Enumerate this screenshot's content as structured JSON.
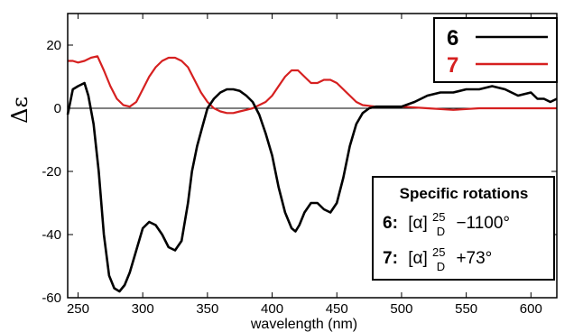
{
  "chart_data": {
    "type": "line",
    "xlabel": "wavelength (nm)",
    "ylabel": "Δε",
    "xlim": [
      242,
      620
    ],
    "ylim": [
      -60,
      30
    ],
    "xticks": [
      250,
      300,
      350,
      400,
      450,
      500,
      550,
      600
    ],
    "yticks": [
      -60,
      -40,
      -20,
      0,
      20
    ],
    "grid": false,
    "legend_position": "top-right",
    "series": [
      {
        "name": "6",
        "color": "#000000",
        "x": [
          242,
          246,
          250,
          255,
          258,
          262,
          266,
          270,
          274,
          278,
          282,
          286,
          290,
          295,
          300,
          305,
          310,
          315,
          320,
          325,
          330,
          335,
          338,
          342,
          346,
          350,
          355,
          360,
          365,
          370,
          375,
          380,
          385,
          390,
          395,
          400,
          405,
          410,
          415,
          418,
          421,
          425,
          430,
          435,
          440,
          445,
          450,
          455,
          460,
          465,
          470,
          475,
          480,
          490,
          500,
          510,
          520,
          530,
          540,
          550,
          560,
          570,
          580,
          590,
          600,
          605,
          610,
          615,
          620
        ],
        "y": [
          -2,
          6,
          7,
          8,
          4,
          -5,
          -20,
          -40,
          -53,
          -57,
          -58,
          -56,
          -52,
          -45,
          -38,
          -36,
          -37,
          -40,
          -44,
          -45,
          -42,
          -30,
          -20,
          -12,
          -6,
          0,
          3,
          5,
          6,
          6,
          5.5,
          4,
          2,
          -2,
          -8,
          -15,
          -25,
          -33,
          -38,
          -39,
          -37,
          -33,
          -30,
          -30,
          -32,
          -33,
          -30,
          -22,
          -12,
          -5,
          -1.5,
          0,
          0.5,
          0.5,
          0.5,
          2,
          4,
          5,
          5,
          6,
          6,
          7,
          6,
          4,
          5,
          3,
          3,
          2,
          3
        ]
      },
      {
        "name": "7",
        "color": "#d62020",
        "x": [
          242,
          246,
          250,
          255,
          260,
          265,
          270,
          275,
          280,
          285,
          290,
          295,
          300,
          305,
          310,
          315,
          320,
          325,
          330,
          335,
          340,
          345,
          350,
          355,
          360,
          365,
          370,
          375,
          380,
          385,
          390,
          395,
          400,
          405,
          410,
          415,
          420,
          425,
          430,
          435,
          440,
          445,
          450,
          455,
          460,
          465,
          470,
          480,
          490,
          500,
          520,
          540,
          560,
          580,
          600,
          610,
          620
        ],
        "y": [
          15,
          15,
          14.5,
          15,
          16,
          16.5,
          12,
          7,
          3,
          1,
          0.5,
          2,
          6,
          10,
          13,
          15,
          16,
          16,
          15,
          13,
          9,
          5,
          2,
          0,
          -1,
          -1.5,
          -1.5,
          -1,
          -0.5,
          0,
          1,
          2,
          4,
          7,
          10,
          12,
          12,
          10,
          8,
          8,
          9,
          9,
          8,
          6,
          4,
          2,
          1,
          0.5,
          0.5,
          0.5,
          0,
          -0.5,
          0,
          0,
          0,
          0,
          0
        ]
      }
    ],
    "annotation": {
      "title": "Specific rotations",
      "rows": [
        {
          "compound": "6:",
          "symbol": "[α]",
          "sup": "25",
          "sub": "D",
          "value": "−1100°"
        },
        {
          "compound": "7:",
          "symbol": "[α]",
          "sup": "25",
          "sub": "D",
          "value": "+73°"
        }
      ]
    }
  }
}
